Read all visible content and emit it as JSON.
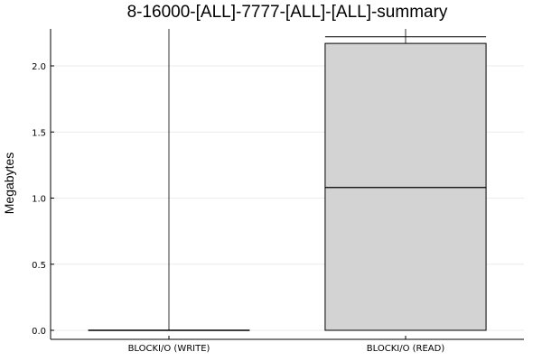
{
  "chart_data": {
    "type": "box",
    "title": "8-16000-[ALL]-7777-[ALL]-[ALL]-summary",
    "ylabel": "Megabytes",
    "xlabel": "",
    "ylim": [
      -0.05,
      2.3
    ],
    "yticks": [
      "0.0",
      "0.5",
      "1.0",
      "1.5",
      "2.0"
    ],
    "ytick_values": [
      0.0,
      0.5,
      1.0,
      1.5,
      2.0
    ],
    "grid": true,
    "legend": "none",
    "box_fill": "#d3d3d3",
    "categories": [
      "BLOCKI/O (WRITE)",
      "BLOCKI/O (READ)"
    ],
    "boxes": [
      {
        "category": "BLOCKI/O (WRITE)",
        "min": 0.0,
        "q1": 0.0,
        "median": 0.0,
        "q3": 0.0,
        "max": 0.0,
        "whisker_top": 2.3
      },
      {
        "category": "BLOCKI/O (READ)",
        "min": 0.0,
        "q1": 0.0,
        "median": 1.08,
        "q3": 2.17,
        "max": 2.22,
        "whisker_top": 2.3
      }
    ]
  }
}
